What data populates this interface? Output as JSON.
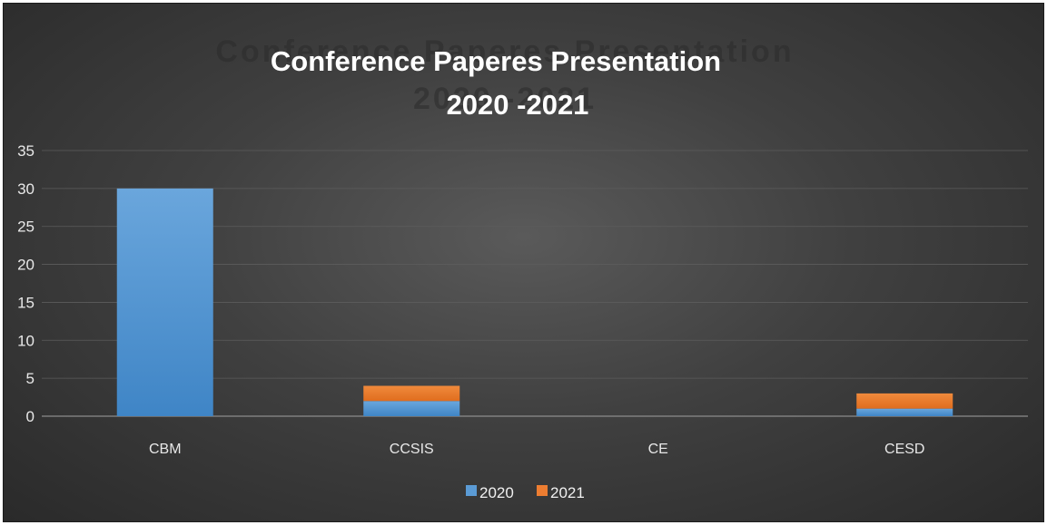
{
  "chart_data": {
    "type": "bar",
    "stacked": true,
    "title": "Conference Paperes Presentation",
    "subtitle": "2020 -2021",
    "categories": [
      "CBM",
      "CCSIS",
      "CE",
      "CESD"
    ],
    "series": [
      {
        "name": "2020",
        "values": [
          30,
          2,
          0,
          1
        ],
        "color": "#5b9bd5"
      },
      {
        "name": "2021",
        "values": [
          0,
          2,
          0,
          2
        ],
        "color": "#ed7d31"
      }
    ],
    "ylim": [
      0,
      35
    ],
    "yticks": [
      0,
      5,
      10,
      15,
      20,
      25,
      30,
      35
    ],
    "grid": true,
    "legend": "bottom"
  }
}
